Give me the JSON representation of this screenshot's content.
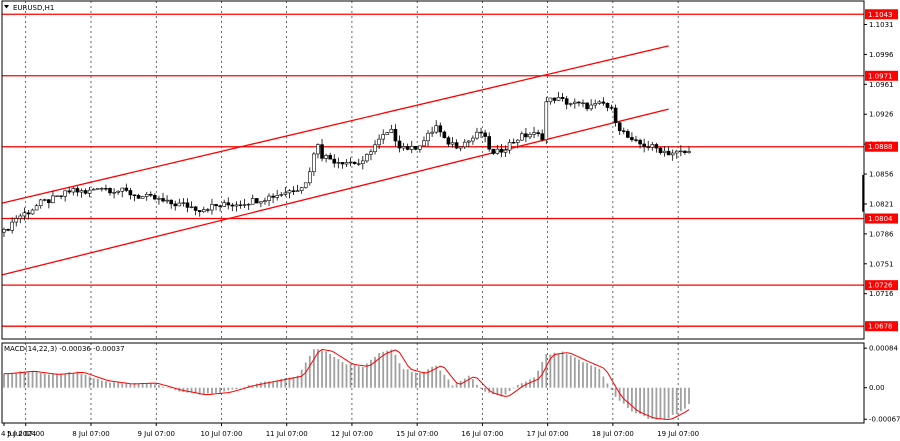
{
  "title": "EURUSD,H1",
  "macd_title": "MACD(14,22,3) -0.00036 -0.00037",
  "colors": {
    "level": "#ff0000",
    "candle": "#000000",
    "grid": "#000000",
    "histogram": "#a0a0a0",
    "signal": "#ff0000",
    "label_bg": "#ff0000"
  },
  "chart_data": {
    "type": "candlestick",
    "symbol": "EURUSD",
    "timeframe": "H1",
    "ylim": [
      1.0663,
      1.1055
    ],
    "y_ticks": [
      "1.1031",
      "1.0996",
      "1.0961",
      "1.0926",
      "1.0891",
      "1.0856",
      "1.0821",
      "1.0786",
      "1.0751",
      "1.0716"
    ],
    "x_ticks": [
      "4 Jul 2024",
      "5 Jul 07:00",
      "8 Jul 07:00",
      "9 Jul 07:00",
      "10 Jul 07:00",
      "11 Jul 07:00",
      "12 Jul 07:00",
      "15 Jul 07:00",
      "16 Jul 07:00",
      "17 Jul 07:00",
      "18 Jul 07:00",
      "19 Jul 07:00"
    ],
    "horizontal_levels": [
      "1.1043",
      "1.0971",
      "1.0888",
      "1.0804",
      "1.0726",
      "1.0678"
    ],
    "channel_lines": [
      {
        "x": [
          0,
          163
        ],
        "y": [
          1.0822,
          1.1006
        ]
      },
      {
        "x": [
          0,
          163
        ],
        "y": [
          1.0738,
          1.0932
        ]
      }
    ],
    "price_path": [
      [
        0,
        1.0788
      ],
      [
        3,
        1.0805
      ],
      [
        6,
        1.0812
      ],
      [
        9,
        1.0822
      ],
      [
        13,
        1.0828
      ],
      [
        17,
        1.0838
      ],
      [
        20,
        1.0833
      ],
      [
        23,
        1.0842
      ],
      [
        26,
        1.0838
      ],
      [
        30,
        1.0835
      ],
      [
        33,
        1.083
      ],
      [
        37,
        1.0827
      ],
      [
        40,
        1.0822
      ],
      [
        44,
        1.082
      ],
      [
        48,
        1.0815
      ],
      [
        51,
        1.0818
      ],
      [
        55,
        1.082
      ],
      [
        59,
        1.0823
      ],
      [
        63,
        1.0827
      ],
      [
        67,
        1.0832
      ],
      [
        71,
        1.0838
      ],
      [
        74,
        1.0845
      ],
      [
        76,
        1.0878
      ],
      [
        77,
        1.0893
      ],
      [
        78,
        1.0878
      ],
      [
        81,
        1.0872
      ],
      [
        85,
        1.087
      ],
      [
        88,
        1.0868
      ],
      [
        90,
        1.0885
      ],
      [
        93,
        1.09
      ],
      [
        95,
        1.0905
      ],
      [
        97,
        1.089
      ],
      [
        100,
        1.0885
      ],
      [
        103,
        1.0895
      ],
      [
        106,
        1.0912
      ],
      [
        108,
        1.0895
      ],
      [
        111,
        1.089
      ],
      [
        114,
        1.0895
      ],
      [
        117,
        1.0905
      ],
      [
        120,
        1.0878
      ],
      [
        123,
        1.0888
      ],
      [
        126,
        1.0898
      ],
      [
        129,
        1.0903
      ],
      [
        132,
        1.09
      ],
      [
        133,
        1.094
      ],
      [
        135,
        1.0945
      ],
      [
        138,
        1.094
      ],
      [
        141,
        1.0937
      ],
      [
        144,
        1.0935
      ],
      [
        147,
        1.0938
      ],
      [
        149,
        1.093
      ],
      [
        151,
        1.091
      ],
      [
        154,
        1.0893
      ],
      [
        157,
        1.089
      ],
      [
        160,
        1.0886
      ],
      [
        163,
        1.0881
      ],
      [
        166,
        1.0881
      ],
      [
        168,
        1.0881
      ]
    ],
    "macd": {
      "title": "MACD(14,22,3)",
      "values_text": "-0.00036 -0.00037",
      "ylim": [
        -0.00075,
        0.00095
      ],
      "y_ticks": [
        "0.00084",
        "0.00",
        "-0.00067"
      ],
      "series": [
        [
          0,
          0.0003
        ],
        [
          6,
          0.00035
        ],
        [
          12,
          0.00028
        ],
        [
          18,
          0.00033
        ],
        [
          24,
          0.00015
        ],
        [
          30,
          8e-05
        ],
        [
          36,
          0.0001
        ],
        [
          42,
          -5e-05
        ],
        [
          48,
          -0.00015
        ],
        [
          54,
          -0.0001
        ],
        [
          60,
          5e-05
        ],
        [
          66,
          0.00015
        ],
        [
          72,
          0.00025
        ],
        [
          76,
          0.00082
        ],
        [
          79,
          0.00078
        ],
        [
          84,
          0.0005
        ],
        [
          88,
          0.00045
        ],
        [
          92,
          0.00072
        ],
        [
          95,
          0.00082
        ],
        [
          98,
          0.0004
        ],
        [
          102,
          0.0003
        ],
        [
          106,
          0.00048
        ],
        [
          110,
          5e-05
        ],
        [
          114,
          0.00025
        ],
        [
          118,
          -0.0001
        ],
        [
          122,
          -0.0002
        ],
        [
          126,
          5e-05
        ],
        [
          130,
          0.0002
        ],
        [
          133,
          0.0007
        ],
        [
          137,
          0.00075
        ],
        [
          142,
          0.00055
        ],
        [
          146,
          0.0004
        ],
        [
          150,
          -0.0002
        ],
        [
          154,
          -0.0005
        ],
        [
          158,
          -0.00065
        ],
        [
          162,
          -0.00068
        ],
        [
          166,
          -0.0005
        ],
        [
          168,
          -0.00036
        ]
      ]
    }
  }
}
